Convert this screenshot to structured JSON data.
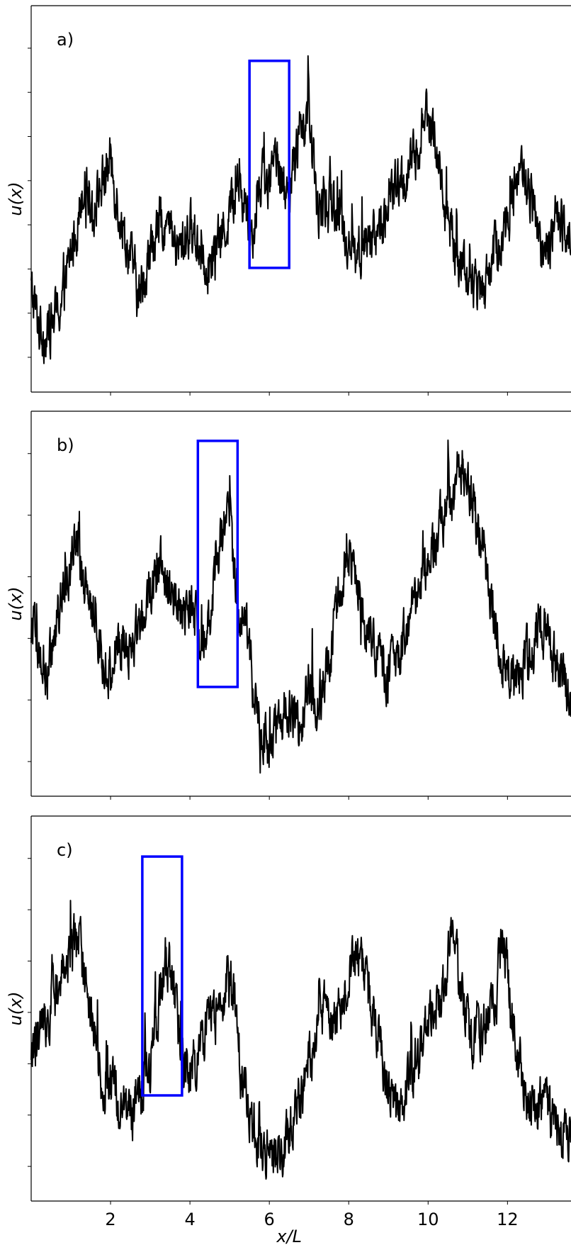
{
  "chart_data": [
    {
      "type": "line",
      "panel_label": "a)",
      "ylabel": "u(x)",
      "xlabel": "",
      "xlim": [
        0,
        13.6
      ],
      "ylim": [
        0,
        1
      ],
      "y_ticks_count": 8,
      "grid": false,
      "line_color": "#000000",
      "box_color": "#0000ff",
      "highlight_box": {
        "x": [
          5.5,
          6.5
        ],
        "y": [
          0.31,
          0.88
        ]
      },
      "series": [
        {
          "x": [
            0,
            0.2,
            0.4,
            0.6,
            0.8,
            1.0,
            1.2,
            1.3,
            1.6,
            1.9,
            2.0,
            2.3,
            2.6,
            2.7,
            3.0,
            3.3,
            3.5,
            3.7,
            4.0,
            4.3,
            4.5,
            4.8,
            5.0,
            5.2,
            5.4,
            5.6,
            5.8,
            6.0,
            6.2,
            6.4,
            6.6,
            6.8,
            7.0,
            7.2,
            7.4,
            7.6,
            7.9,
            8.2,
            8.5,
            8.8,
            9.1,
            9.4,
            9.7,
            9.9,
            10.0,
            10.2,
            10.4,
            10.7,
            11.0,
            11.2,
            11.5,
            11.8,
            12.0,
            12.3,
            12.6,
            12.9,
            13.2,
            13.6
          ],
          "y": [
            0.25,
            0.15,
            0.12,
            0.18,
            0.22,
            0.35,
            0.45,
            0.55,
            0.48,
            0.58,
            0.6,
            0.42,
            0.3,
            0.22,
            0.35,
            0.45,
            0.4,
            0.35,
            0.42,
            0.36,
            0.3,
            0.4,
            0.46,
            0.55,
            0.48,
            0.42,
            0.58,
            0.52,
            0.65,
            0.5,
            0.58,
            0.7,
            0.72,
            0.48,
            0.46,
            0.5,
            0.4,
            0.35,
            0.38,
            0.42,
            0.52,
            0.55,
            0.62,
            0.72,
            0.72,
            0.65,
            0.48,
            0.35,
            0.28,
            0.25,
            0.3,
            0.38,
            0.44,
            0.6,
            0.5,
            0.32,
            0.44,
            0.42
          ]
        }
      ]
    },
    {
      "type": "line",
      "panel_label": "b)",
      "ylabel": "u(x)",
      "xlabel": "",
      "xlim": [
        0,
        13.6
      ],
      "ylim": [
        0,
        1
      ],
      "y_ticks_count": 6,
      "grid": false,
      "line_color": "#000000",
      "box_color": "#0000ff",
      "highlight_box": {
        "x": [
          4.2,
          5.2
        ],
        "y": [
          0.27,
          0.95
        ]
      },
      "series": [
        {
          "x": [
            0,
            0.2,
            0.4,
            0.6,
            0.8,
            1.0,
            1.1,
            1.3,
            1.5,
            1.8,
            2.0,
            2.2,
            2.5,
            2.8,
            3.0,
            3.3,
            3.5,
            3.8,
            4.0,
            4.2,
            4.4,
            4.6,
            4.8,
            5.0,
            5.2,
            5.4,
            5.6,
            5.8,
            6.0,
            6.2,
            6.5,
            6.8,
            7.0,
            7.2,
            7.5,
            7.8,
            8.0,
            8.2,
            8.4,
            8.6,
            8.8,
            9.0,
            9.3,
            9.6,
            9.8,
            10.0,
            10.3,
            10.6,
            10.8,
            11.0,
            11.2,
            11.4,
            11.6,
            11.9,
            12.2,
            12.5,
            12.8,
            13.1,
            13.4,
            13.6
          ],
          "y": [
            0.45,
            0.35,
            0.3,
            0.42,
            0.55,
            0.62,
            0.7,
            0.58,
            0.5,
            0.35,
            0.3,
            0.4,
            0.38,
            0.45,
            0.55,
            0.6,
            0.52,
            0.45,
            0.52,
            0.42,
            0.38,
            0.55,
            0.7,
            0.75,
            0.45,
            0.5,
            0.25,
            0.15,
            0.1,
            0.18,
            0.22,
            0.15,
            0.28,
            0.22,
            0.35,
            0.55,
            0.65,
            0.58,
            0.45,
            0.38,
            0.35,
            0.3,
            0.38,
            0.48,
            0.55,
            0.62,
            0.72,
            0.78,
            0.88,
            0.85,
            0.72,
            0.65,
            0.48,
            0.32,
            0.28,
            0.35,
            0.45,
            0.38,
            0.3,
            0.22
          ]
        }
      ]
    },
    {
      "type": "line",
      "panel_label": "c)",
      "ylabel": "u(x)",
      "xlabel": "x/L",
      "xlim": [
        0,
        13.6
      ],
      "ylim": [
        0,
        1
      ],
      "x_ticks": [
        2,
        4,
        6,
        8,
        10,
        12
      ],
      "y_ticks_count": 7,
      "grid": false,
      "line_color": "#000000",
      "box_color": "#0000ff",
      "highlight_box": {
        "x": [
          2.8,
          3.8
        ],
        "y": [
          0.26,
          0.92
        ]
      },
      "series": [
        {
          "x": [
            0,
            0.2,
            0.4,
            0.6,
            0.8,
            1.0,
            1.2,
            1.3,
            1.5,
            1.8,
            2.0,
            2.2,
            2.5,
            2.7,
            3.0,
            3.2,
            3.4,
            3.6,
            3.8,
            4.0,
            4.2,
            4.5,
            4.8,
            5.0,
            5.1,
            5.3,
            5.6,
            5.9,
            6.1,
            6.3,
            6.6,
            6.9,
            7.2,
            7.4,
            7.6,
            7.9,
            8.2,
            8.4,
            8.6,
            8.9,
            9.2,
            9.5,
            9.8,
            10.1,
            10.4,
            10.6,
            10.8,
            11.1,
            11.4,
            11.7,
            11.9,
            12.1,
            12.4,
            12.7,
            13.0,
            13.3,
            13.6
          ],
          "y": [
            0.38,
            0.42,
            0.48,
            0.55,
            0.6,
            0.65,
            0.7,
            0.6,
            0.45,
            0.3,
            0.32,
            0.25,
            0.2,
            0.25,
            0.35,
            0.5,
            0.65,
            0.55,
            0.35,
            0.3,
            0.38,
            0.45,
            0.5,
            0.6,
            0.55,
            0.3,
            0.18,
            0.1,
            0.08,
            0.12,
            0.2,
            0.3,
            0.45,
            0.52,
            0.45,
            0.55,
            0.68,
            0.6,
            0.48,
            0.35,
            0.2,
            0.28,
            0.4,
            0.5,
            0.55,
            0.72,
            0.58,
            0.4,
            0.45,
            0.55,
            0.7,
            0.48,
            0.3,
            0.2,
            0.25,
            0.15,
            0.18
          ]
        }
      ]
    }
  ]
}
